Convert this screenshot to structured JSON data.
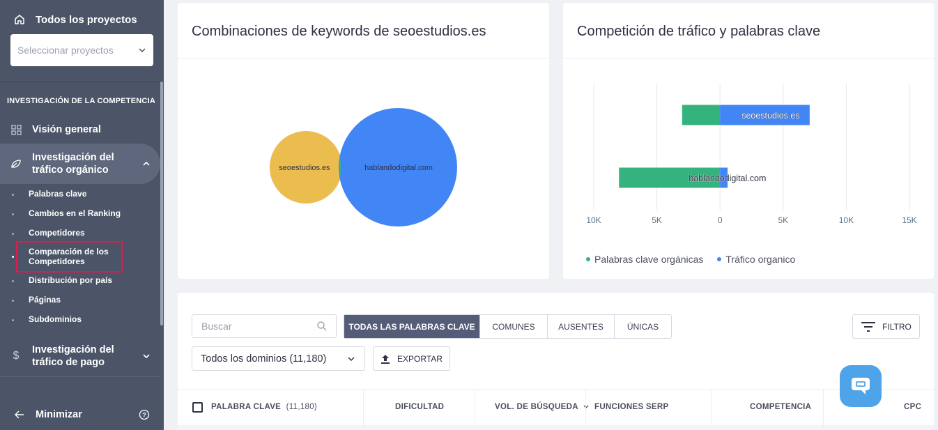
{
  "sidebar": {
    "all_projects": "Todos los proyectos",
    "select_placeholder": "Seleccionar proyectos",
    "section": "INVESTIGACIÓN DE LA COMPETENCIA",
    "overview": "Visión general",
    "organic_line1": "Investigación del",
    "organic_line2": "tráfico orgánico",
    "subitems": [
      "Palabras clave",
      "Cambios en el Ranking",
      "Competidores",
      "Comparación de los",
      "Competidores",
      "Distribución por país",
      "Páginas",
      "Subdominios"
    ],
    "paid_line1": "Investigación del",
    "paid_line2": "tráfico de pago",
    "minimize": "Minimizar"
  },
  "venn": {
    "title": "Combinaciones de keywords de seoestudios.es",
    "left_label": "seoestudios.es",
    "right_label": "hablandodigital.com",
    "left_color": "#ebbc4e",
    "right_color": "#4285f4",
    "overlap_color": "#35b37e"
  },
  "chart_data": {
    "type": "bar",
    "title": "Competición de tráfico y palabras clave",
    "categories": [
      "seoestudios.es",
      "hablandodigital.com"
    ],
    "series": [
      {
        "name": "Palabras clave orgánicas",
        "color": "#35b37e",
        "values": [
          3000,
          8000
        ]
      },
      {
        "name": "Tráfico organico",
        "color": "#4285f4",
        "values": [
          7100,
          600
        ]
      }
    ],
    "xlim": [
      -10000,
      15000
    ],
    "x_ticks": [
      "10K",
      "5K",
      "0",
      "5K",
      "10K",
      "15K"
    ],
    "x_tick_values": [
      -10000,
      -5000,
      0,
      5000,
      10000,
      15000
    ],
    "grid": true,
    "legend": "bottom-left"
  },
  "toolbar": {
    "search_placeholder": "Buscar",
    "tabs": [
      "TODAS LAS PALABRAS CLAVE",
      "COMUNES",
      "AUSENTES",
      "ÚNICAS"
    ],
    "filter": "FILTRO",
    "domains": "Todos los dominios (11,180)",
    "export": "EXPORTAR"
  },
  "table": {
    "keyword": "PALABRA CLAVE",
    "keyword_count": "(11,180)",
    "difficulty": "DIFICULTAD",
    "volume": "VOL. DE BÚSQUEDA",
    "serp": "FUNCIONES SERP",
    "competition": "COMPETENCIA",
    "cpc": "CPC"
  }
}
